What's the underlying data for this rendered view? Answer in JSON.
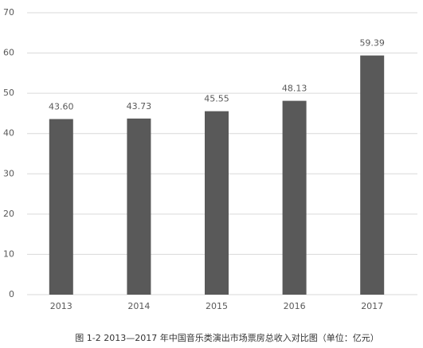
{
  "chart_data": {
    "type": "bar",
    "categories": [
      "2013",
      "2014",
      "2015",
      "2016",
      "2017"
    ],
    "values": [
      43.6,
      43.73,
      45.55,
      48.13,
      59.39
    ],
    "value_labels": [
      "43.60",
      "43.73",
      "45.55",
      "48.13",
      "59.39"
    ],
    "color": "#595959",
    "ylim": [
      0,
      70
    ],
    "yticks": [
      0,
      10,
      20,
      30,
      40,
      50,
      60,
      70
    ],
    "grid": true,
    "caption": "图 1-2 2013—2017 年中国音乐类演出市场票房总收入对比图（单位：亿元）"
  }
}
